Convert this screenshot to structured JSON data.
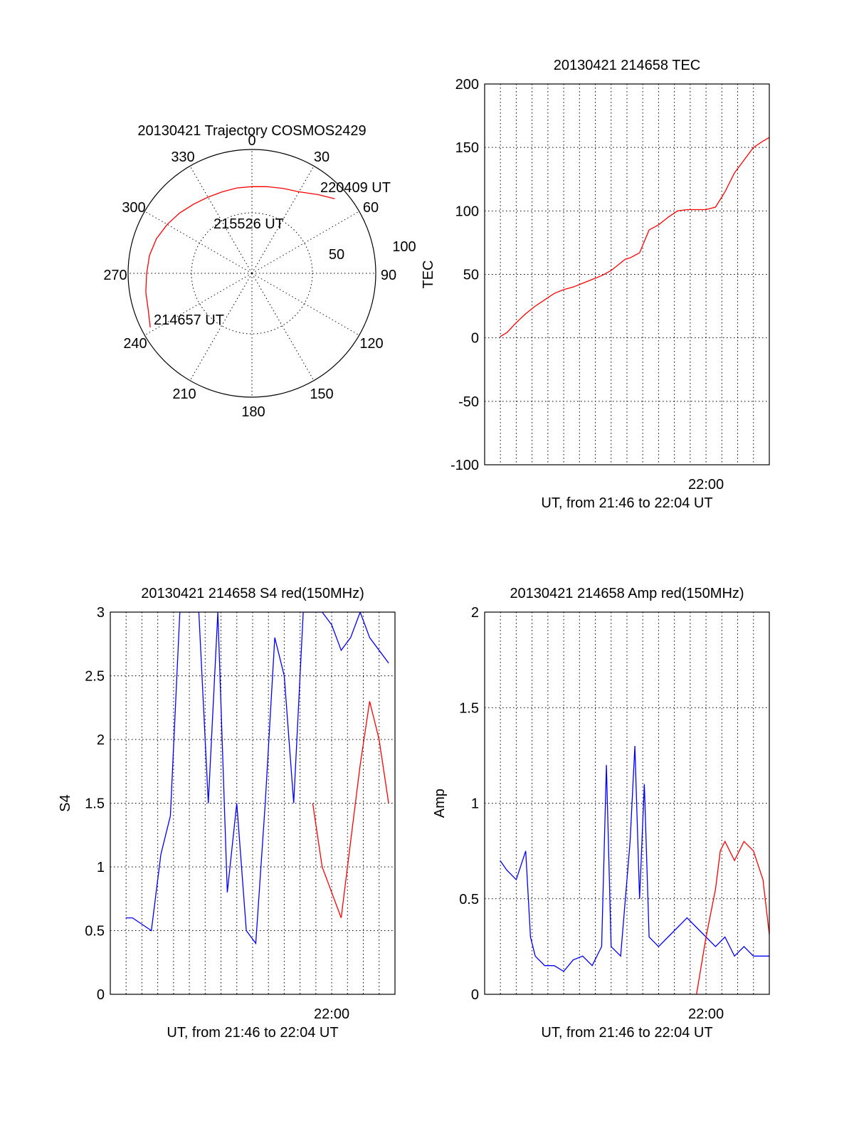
{
  "chart_data": [
    {
      "id": "trajectory",
      "type": "scatter",
      "title": "20130421 Trajectory COSMOS2429",
      "projection": "polar",
      "azimuth_labels": [
        "0",
        "30",
        "60",
        "90",
        "120",
        "150",
        "180",
        "210",
        "240",
        "270",
        "300",
        "330"
      ],
      "radius_labels": [
        "50",
        "100"
      ],
      "rmax": 100,
      "grid": true,
      "series": [
        {
          "color": "#ff0000",
          "azimuth": [
            242,
            250,
            260,
            270,
            280,
            290,
            300,
            310,
            320,
            330,
            340,
            350,
            0,
            10,
            20,
            30,
            40,
            48
          ],
          "radius": [
            93,
            89,
            87,
            85,
            84,
            82,
            79,
            76,
            73,
            71,
            70,
            70,
            70,
            71,
            73,
            76,
            83,
            90
          ]
        }
      ],
      "annotations": [
        {
          "text": "220409 UT"
        },
        {
          "text": "215526 UT"
        },
        {
          "text": "214657 UT"
        }
      ]
    },
    {
      "id": "tec",
      "type": "line",
      "title": "20130421 214658 TEC",
      "xlabel": "UT, from 21:46 to 22:04 UT",
      "ylabel": "TEC",
      "xlim": [
        21.7667,
        22.0667
      ],
      "ylim": [
        -100,
        200
      ],
      "yticks": [
        "200",
        "150",
        "100",
        "50",
        "0",
        "-50",
        "-100"
      ],
      "xtick_label": "22:00",
      "grid": true,
      "series": [
        {
          "color": "#ff0000",
          "x": [
            21.783,
            21.79,
            21.8,
            21.81,
            21.82,
            21.83,
            21.84,
            21.85,
            21.86,
            21.87,
            21.88,
            21.89,
            21.9,
            21.91,
            21.915,
            21.92,
            21.93,
            21.94,
            21.95,
            21.96,
            21.97,
            21.98,
            21.99,
            22.0,
            22.01,
            22.02,
            22.03,
            22.04,
            22.05,
            22.06,
            22.067
          ],
          "y": [
            1,
            4,
            12,
            19,
            25,
            30,
            35,
            38,
            40,
            43,
            46,
            49,
            53,
            59,
            62,
            63,
            67,
            85,
            89,
            95,
            100,
            101,
            101,
            101,
            103,
            115,
            130,
            140,
            150,
            155,
            158
          ]
        }
      ]
    },
    {
      "id": "s4",
      "type": "line",
      "title": "20130421 214658 S4 red(150MHz)",
      "xlabel": "UT, from 21:46 to 22:04 UT",
      "ylabel": "S4",
      "xlim": [
        21.7667,
        22.0667
      ],
      "ylim": [
        0,
        3
      ],
      "yticks": [
        "3",
        "2.5",
        "2",
        "1.5",
        "1",
        "0.5",
        "0"
      ],
      "xtick_label": "22:00",
      "grid": true,
      "series": [
        {
          "color": "#ff0000",
          "x": [
            21.98,
            21.99,
            22.0,
            22.01,
            22.02,
            22.03,
            22.04,
            22.05,
            22.06
          ],
          "y": [
            1.5,
            1.0,
            0.8,
            0.6,
            1.2,
            1.8,
            2.3,
            2.0,
            1.5
          ]
        },
        {
          "color": "#0000ff",
          "x": [
            21.783,
            21.79,
            21.8,
            21.81,
            21.82,
            21.83,
            21.84,
            21.85,
            21.86,
            21.87,
            21.88,
            21.89,
            21.9,
            21.91,
            21.92,
            21.93,
            21.94,
            21.95,
            21.96,
            21.97,
            21.98,
            21.99,
            22.0,
            22.01,
            22.02,
            22.03,
            22.04,
            22.05,
            22.06
          ],
          "y": [
            0.6,
            0.6,
            0.55,
            0.5,
            1.1,
            1.4,
            3.0,
            3.0,
            3.0,
            1.5,
            3.0,
            0.8,
            1.5,
            0.5,
            0.4,
            1.5,
            2.8,
            2.5,
            1.5,
            3.0,
            3.0,
            3.0,
            2.9,
            2.7,
            2.8,
            3.0,
            2.8,
            2.7,
            2.6
          ]
        }
      ]
    },
    {
      "id": "amp",
      "type": "line",
      "title": "20130421 214658 Amp red(150MHz)",
      "xlabel": "UT, from 21:46 to 22:04 UT",
      "ylabel": "Amp",
      "xlim": [
        21.7667,
        22.0667
      ],
      "ylim": [
        0,
        2
      ],
      "yticks": [
        "2",
        "1.5",
        "1",
        "0.5",
        "0"
      ],
      "xtick_label": "22:00",
      "grid": true,
      "series": [
        {
          "color": "#0000ff",
          "x": [
            21.783,
            21.79,
            21.8,
            21.81,
            21.815,
            21.82,
            21.83,
            21.84,
            21.85,
            21.86,
            21.87,
            21.88,
            21.89,
            21.895,
            21.9,
            21.91,
            21.92,
            21.925,
            21.93,
            21.935,
            21.94,
            21.95,
            21.96,
            21.97,
            21.98,
            21.99,
            22.0,
            22.01,
            22.02,
            22.03,
            22.04,
            22.05,
            22.06,
            22.067
          ],
          "y": [
            0.7,
            0.65,
            0.6,
            0.75,
            0.3,
            0.2,
            0.15,
            0.15,
            0.12,
            0.18,
            0.2,
            0.15,
            0.25,
            1.2,
            0.25,
            0.2,
            0.8,
            1.3,
            0.5,
            1.1,
            0.3,
            0.25,
            0.3,
            0.35,
            0.4,
            0.35,
            0.3,
            0.25,
            0.3,
            0.2,
            0.25,
            0.2,
            0.2,
            0.2
          ]
        },
        {
          "color": "#ff0000",
          "x": [
            21.99,
            22.0,
            22.01,
            22.015,
            22.02,
            22.03,
            22.04,
            22.05,
            22.06,
            22.067
          ],
          "y": [
            0.0,
            0.3,
            0.55,
            0.75,
            0.8,
            0.7,
            0.8,
            0.75,
            0.6,
            0.3
          ]
        }
      ]
    }
  ]
}
